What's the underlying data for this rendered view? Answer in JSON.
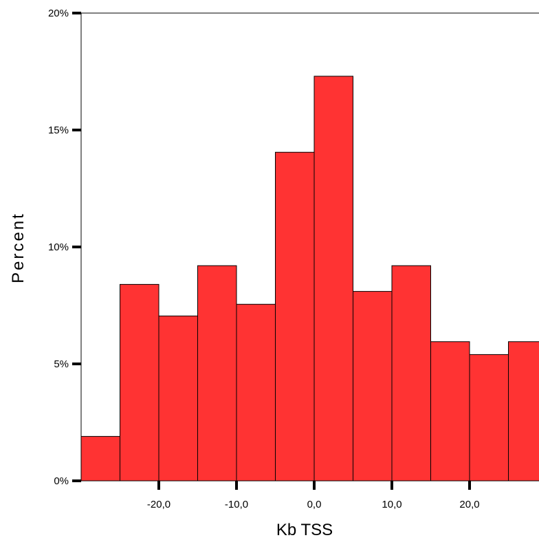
{
  "chart_data": {
    "type": "bar",
    "subtype": "histogram",
    "xlabel": "Kb TSS",
    "ylabel": "Percent",
    "bin_width": 5,
    "bins": [
      {
        "start": -30,
        "end": -25,
        "value": 1.9
      },
      {
        "start": -25,
        "end": -20,
        "value": 8.4
      },
      {
        "start": -20,
        "end": -15,
        "value": 7.05
      },
      {
        "start": -15,
        "end": -10,
        "value": 9.2
      },
      {
        "start": -10,
        "end": -5,
        "value": 7.55
      },
      {
        "start": -5,
        "end": 0,
        "value": 14.05
      },
      {
        "start": 0,
        "end": 5,
        "value": 17.3
      },
      {
        "start": 5,
        "end": 10,
        "value": 8.1
      },
      {
        "start": 10,
        "end": 15,
        "value": 9.2
      },
      {
        "start": 15,
        "end": 20,
        "value": 5.95
      },
      {
        "start": 20,
        "end": 25,
        "value": 5.4
      },
      {
        "start": 25,
        "end": 30,
        "value": 5.95
      }
    ],
    "xlim": [
      -30,
      30
    ],
    "ylim": [
      0,
      20
    ],
    "x_ticks": [
      -20,
      -10,
      0,
      10,
      20
    ],
    "x_tick_labels": [
      "-20,0",
      "-10,0",
      "0,0",
      "10,0",
      "20,0"
    ],
    "y_ticks": [
      0,
      5,
      10,
      15,
      20
    ],
    "y_tick_labels": [
      "0%",
      "5%",
      "10%",
      "15%",
      "20%"
    ],
    "grid": false,
    "legend": "none",
    "bar_color": "#ff3333",
    "bar_edge_color": "#000000"
  }
}
